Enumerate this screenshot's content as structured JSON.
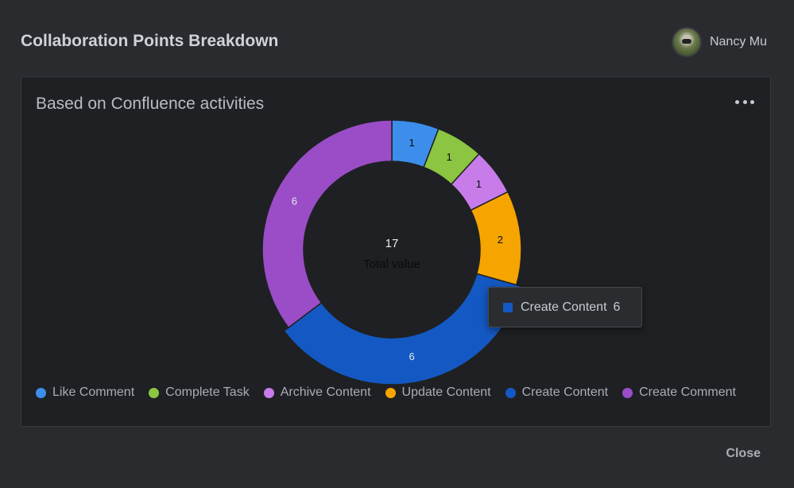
{
  "modal": {
    "title": "Collaboration Points Breakdown",
    "close_label": "Close"
  },
  "user": {
    "name": "Nancy Mu",
    "avatar_icon": "raccoon-avatar"
  },
  "card": {
    "title": "Based on Confluence activities",
    "menu_icon": "more-horizontal-icon"
  },
  "chart_data": {
    "type": "pie",
    "variant": "donut",
    "categories": [
      "Like Comment",
      "Complete Task",
      "Archive Content",
      "Update Content",
      "Create Content",
      "Create Comment"
    ],
    "values": [
      1,
      1,
      1,
      2,
      6,
      6
    ],
    "colors": [
      "#3d8eea",
      "#8cc541",
      "#c77ce9",
      "#f6a400",
      "#1459c3",
      "#9a4dc7"
    ],
    "label_colors": [
      "#0b0b0c",
      "#0b0b0c",
      "#0b0b0c",
      "#0b0b0c",
      "#e8e9ec",
      "#e8e9ec"
    ],
    "center_value": "17",
    "center_label": "Total value",
    "legend_position": "bottom",
    "highlighted_index": 4,
    "tooltip": {
      "label": "Create Content",
      "value": "6",
      "color": "#1459c3"
    }
  }
}
